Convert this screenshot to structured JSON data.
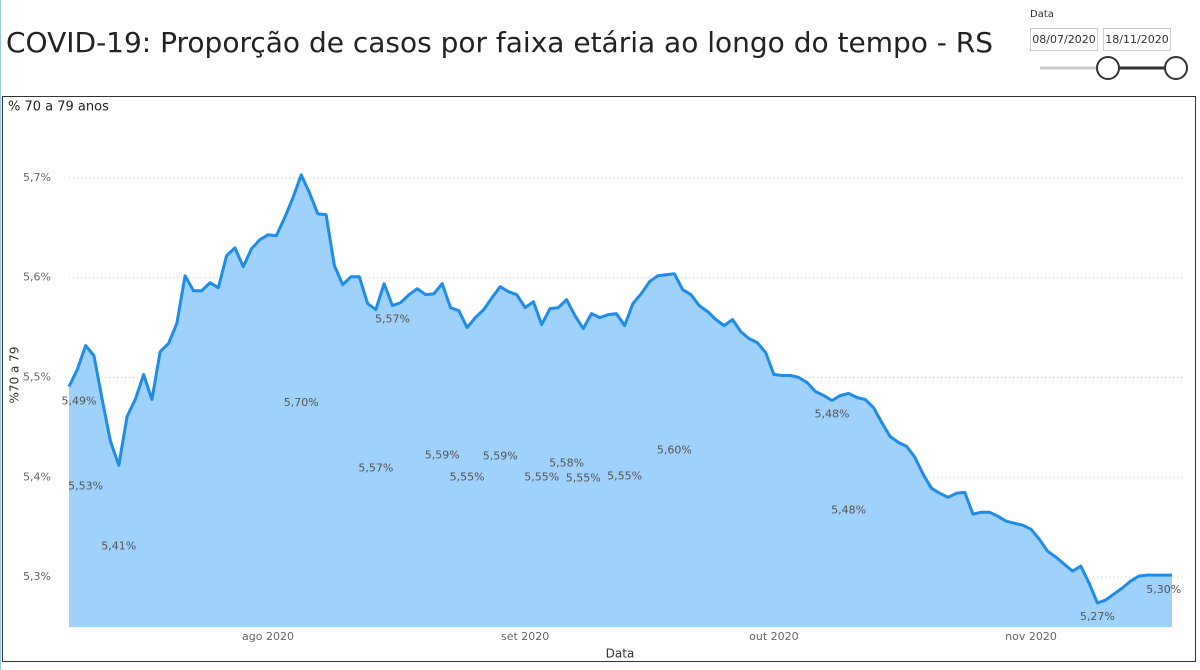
{
  "header": {
    "title": "COVID-19: Proporção de casos por faixa etária ao longo do tempo - RS"
  },
  "slicer": {
    "label": "Data",
    "start": "08/07/2020",
    "end": "18/11/2020"
  },
  "chart_data": {
    "type": "area",
    "title": "% 70 a 79 anos",
    "x_label": "Data",
    "y_label": "%70 a 79",
    "x": [
      "2020-07-08",
      "2020-07-09",
      "2020-07-10",
      "2020-07-11",
      "2020-07-12",
      "2020-07-13",
      "2020-07-14",
      "2020-07-15",
      "2020-07-16",
      "2020-07-17",
      "2020-07-18",
      "2020-07-19",
      "2020-07-20",
      "2020-07-21",
      "2020-07-22",
      "2020-07-23",
      "2020-07-24",
      "2020-07-25",
      "2020-07-26",
      "2020-07-27",
      "2020-07-28",
      "2020-07-29",
      "2020-07-30",
      "2020-07-31",
      "2020-08-01",
      "2020-08-02",
      "2020-08-03",
      "2020-08-04",
      "2020-08-05",
      "2020-08-06",
      "2020-08-07",
      "2020-08-08",
      "2020-08-09",
      "2020-08-10",
      "2020-08-11",
      "2020-08-12",
      "2020-08-13",
      "2020-08-14",
      "2020-08-15",
      "2020-08-16",
      "2020-08-17",
      "2020-08-18",
      "2020-08-19",
      "2020-08-20",
      "2020-08-21",
      "2020-08-22",
      "2020-08-23",
      "2020-08-24",
      "2020-08-25",
      "2020-08-26",
      "2020-08-27",
      "2020-08-28",
      "2020-08-29",
      "2020-08-30",
      "2020-08-31",
      "2020-09-01",
      "2020-09-02",
      "2020-09-03",
      "2020-09-04",
      "2020-09-05",
      "2020-09-06",
      "2020-09-07",
      "2020-09-08",
      "2020-09-09",
      "2020-09-10",
      "2020-09-11",
      "2020-09-12",
      "2020-09-13",
      "2020-09-14",
      "2020-09-15",
      "2020-09-16",
      "2020-09-17",
      "2020-09-18",
      "2020-09-19",
      "2020-09-20",
      "2020-09-21",
      "2020-09-22",
      "2020-09-23",
      "2020-09-24",
      "2020-09-25",
      "2020-09-26",
      "2020-09-27",
      "2020-09-28",
      "2020-09-29",
      "2020-09-30",
      "2020-10-01",
      "2020-10-02",
      "2020-10-03",
      "2020-10-04",
      "2020-10-05",
      "2020-10-06",
      "2020-10-07",
      "2020-10-08",
      "2020-10-09",
      "2020-10-10",
      "2020-10-11",
      "2020-10-12",
      "2020-10-13",
      "2020-10-14",
      "2020-10-15",
      "2020-10-16",
      "2020-10-17",
      "2020-10-18",
      "2020-10-19",
      "2020-10-20",
      "2020-10-21",
      "2020-10-22",
      "2020-10-23",
      "2020-10-24",
      "2020-10-25",
      "2020-10-26",
      "2020-10-27",
      "2020-10-28",
      "2020-10-29",
      "2020-10-30",
      "2020-10-31",
      "2020-11-01",
      "2020-11-02",
      "2020-11-03",
      "2020-11-04",
      "2020-11-05",
      "2020-11-06",
      "2020-11-07",
      "2020-11-08",
      "2020-11-09",
      "2020-11-10",
      "2020-11-11",
      "2020-11-12",
      "2020-11-13",
      "2020-11-14",
      "2020-11-15",
      "2020-11-16",
      "2020-11-17",
      "2020-11-18"
    ],
    "values": [
      5.491,
      5.508,
      5.532,
      5.522,
      5.478,
      5.436,
      5.412,
      5.461,
      5.478,
      5.503,
      5.478,
      5.526,
      5.534,
      5.554,
      5.602,
      5.587,
      5.587,
      5.595,
      5.59,
      5.622,
      5.63,
      5.611,
      5.629,
      5.638,
      5.643,
      5.642,
      5.66,
      5.68,
      5.703,
      5.685,
      5.664,
      5.663,
      5.612,
      5.593,
      5.601,
      5.601,
      5.574,
      5.568,
      5.594,
      5.572,
      5.575,
      5.583,
      5.589,
      5.583,
      5.584,
      5.594,
      5.57,
      5.567,
      5.55,
      5.56,
      5.568,
      5.58,
      5.591,
      5.586,
      5.583,
      5.57,
      5.576,
      5.553,
      5.569,
      5.57,
      5.578,
      5.562,
      5.549,
      5.564,
      5.56,
      5.563,
      5.564,
      5.552,
      5.574,
      5.584,
      5.596,
      5.602,
      5.603,
      5.604,
      5.588,
      5.583,
      5.572,
      5.566,
      5.558,
      5.552,
      5.558,
      5.546,
      5.539,
      5.535,
      5.525,
      5.503,
      5.502,
      5.502,
      5.5,
      5.495,
      5.486,
      5.482,
      5.477,
      5.482,
      5.484,
      5.48,
      5.478,
      5.47,
      5.455,
      5.441,
      5.435,
      5.431,
      5.42,
      5.403,
      5.389,
      5.384,
      5.38,
      5.384,
      5.385,
      5.363,
      5.365,
      5.365,
      5.361,
      5.356,
      5.354,
      5.352,
      5.348,
      5.338,
      5.326,
      5.32,
      5.313,
      5.306,
      5.311,
      5.294,
      5.274,
      5.277,
      5.283,
      5.289,
      5.296,
      5.301,
      5.302,
      5.302,
      5.302,
      5.302
    ],
    "value_labels": [
      "5,49%",
      null,
      "5,53%",
      null,
      null,
      null,
      "5,41%",
      null,
      null,
      null,
      null,
      null,
      null,
      null,
      null,
      null,
      null,
      null,
      null,
      null,
      null,
      null,
      null,
      null,
      null,
      null,
      null,
      null,
      "5,70%",
      null,
      null,
      null,
      null,
      null,
      null,
      null,
      null,
      "5,57%",
      null,
      "5,57%",
      null,
      null,
      null,
      null,
      null,
      "5,59%",
      null,
      null,
      "5,55%",
      null,
      null,
      null,
      "5,59%",
      null,
      null,
      null,
      null,
      "5,55%",
      null,
      null,
      "5,58%",
      null,
      "5,55%",
      null,
      null,
      null,
      null,
      "5,55%",
      null,
      null,
      null,
      null,
      null,
      "5,60%",
      null,
      null,
      null,
      null,
      null,
      null,
      null,
      null,
      null,
      null,
      null,
      null,
      null,
      null,
      null,
      null,
      null,
      null,
      "5,48%",
      null,
      "5,48%",
      null,
      null,
      null,
      null,
      null,
      null,
      null,
      null,
      null,
      null,
      null,
      null,
      null,
      null,
      null,
      null,
      null,
      null,
      null,
      null,
      null,
      null,
      null,
      null,
      null,
      null,
      null,
      null,
      null,
      "5,27%",
      null,
      null,
      null,
      null,
      null,
      null,
      null,
      "5,30%",
      null
    ],
    "color": "#1e8ce8",
    "fill": "#9fd1fb",
    "xlim": [
      "2020-07-08",
      "2020-11-18"
    ],
    "xticks": [
      {
        "value": "2020-08-01",
        "label": "ago 2020"
      },
      {
        "value": "2020-09-01",
        "label": "set 2020"
      },
      {
        "value": "2020-10-01",
        "label": "out 2020"
      },
      {
        "value": "2020-11-01",
        "label": "nov 2020"
      }
    ],
    "ylim": [
      5.25,
      5.75
    ],
    "yticks": [
      {
        "value": 5.3,
        "label": "5,3%"
      },
      {
        "value": 5.4,
        "label": "5,4%"
      },
      {
        "value": 5.5,
        "label": "5,5%"
      },
      {
        "value": 5.6,
        "label": "5,6%"
      },
      {
        "value": 5.7,
        "label": "5,7%"
      }
    ],
    "grid": true
  }
}
